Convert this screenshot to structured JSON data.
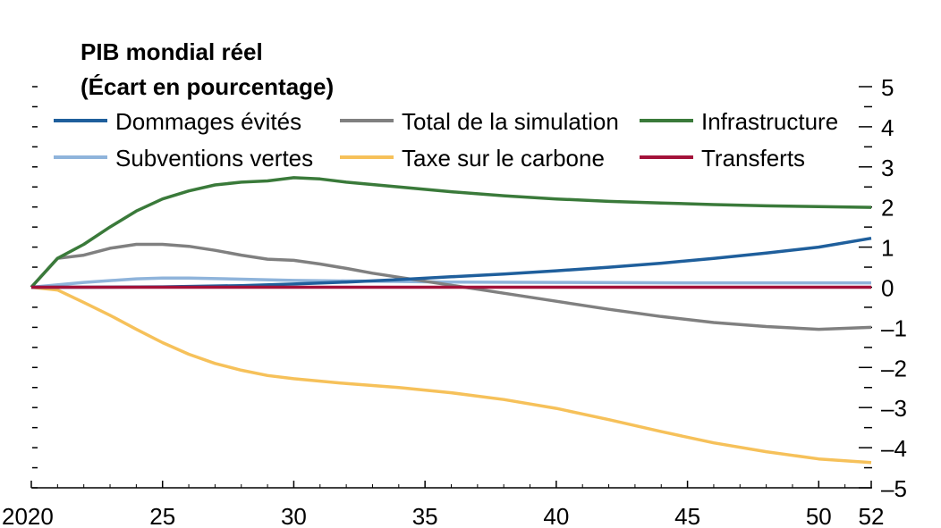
{
  "chart_data": {
    "type": "line",
    "title": "PIB mondial réel",
    "subtitle": "(Écart en pourcentage)",
    "xlabel": "",
    "ylabel": "",
    "xlim": [
      2020,
      2052
    ],
    "ylim": [
      -5,
      5
    ],
    "x_tick_labels": [
      {
        "x": 2020,
        "label": "2020"
      },
      {
        "x": 2025,
        "label": "25"
      },
      {
        "x": 2030,
        "label": "30"
      },
      {
        "x": 2035,
        "label": "35"
      },
      {
        "x": 2040,
        "label": "40"
      },
      {
        "x": 2045,
        "label": "45"
      },
      {
        "x": 2050,
        "label": "50"
      },
      {
        "x": 2052,
        "label": "52"
      }
    ],
    "y_ticks": [
      5,
      4,
      3,
      2,
      1,
      0,
      -1,
      -2,
      -3,
      -4,
      -5
    ],
    "y_tick_labels": [
      "5",
      "4",
      "3",
      "2",
      "1",
      "0",
      "–1",
      "–2",
      "–3",
      "–4",
      "–5"
    ],
    "zero_line": true,
    "grid": false,
    "legend_position": "top",
    "series": [
      {
        "name": "Dommages évités",
        "color": "#1f5f9c",
        "points": [
          [
            2020,
            0
          ],
          [
            2022,
            0
          ],
          [
            2025,
            0.01
          ],
          [
            2028,
            0.04
          ],
          [
            2030,
            0.08
          ],
          [
            2032,
            0.13
          ],
          [
            2034,
            0.19
          ],
          [
            2036,
            0.26
          ],
          [
            2038,
            0.33
          ],
          [
            2040,
            0.41
          ],
          [
            2042,
            0.5
          ],
          [
            2044,
            0.6
          ],
          [
            2046,
            0.72
          ],
          [
            2048,
            0.85
          ],
          [
            2050,
            1.0
          ],
          [
            2052,
            1.22
          ]
        ]
      },
      {
        "name": "Total de la simulation",
        "color": "#808080",
        "points": [
          [
            2020,
            0
          ],
          [
            2021,
            0.72
          ],
          [
            2022,
            0.8
          ],
          [
            2023,
            0.97
          ],
          [
            2024,
            1.07
          ],
          [
            2025,
            1.07
          ],
          [
            2026,
            1.02
          ],
          [
            2027,
            0.92
          ],
          [
            2028,
            0.8
          ],
          [
            2029,
            0.7
          ],
          [
            2030,
            0.67
          ],
          [
            2031,
            0.58
          ],
          [
            2032,
            0.47
          ],
          [
            2033,
            0.35
          ],
          [
            2034,
            0.25
          ],
          [
            2035,
            0.15
          ],
          [
            2036,
            0.05
          ],
          [
            2037,
            -0.05
          ],
          [
            2038,
            -0.15
          ],
          [
            2040,
            -0.35
          ],
          [
            2042,
            -0.55
          ],
          [
            2044,
            -0.73
          ],
          [
            2046,
            -0.88
          ],
          [
            2048,
            -0.98
          ],
          [
            2050,
            -1.05
          ],
          [
            2052,
            -1.0
          ]
        ]
      },
      {
        "name": "Infrastructure",
        "color": "#3a7a3a",
        "points": [
          [
            2020,
            0
          ],
          [
            2021,
            0.72
          ],
          [
            2022,
            1.07
          ],
          [
            2023,
            1.5
          ],
          [
            2024,
            1.9
          ],
          [
            2025,
            2.2
          ],
          [
            2026,
            2.4
          ],
          [
            2027,
            2.55
          ],
          [
            2028,
            2.62
          ],
          [
            2029,
            2.65
          ],
          [
            2030,
            2.73
          ],
          [
            2031,
            2.7
          ],
          [
            2032,
            2.62
          ],
          [
            2034,
            2.5
          ],
          [
            2036,
            2.38
          ],
          [
            2038,
            2.28
          ],
          [
            2040,
            2.2
          ],
          [
            2042,
            2.14
          ],
          [
            2044,
            2.1
          ],
          [
            2046,
            2.06
          ],
          [
            2048,
            2.03
          ],
          [
            2050,
            2.01
          ],
          [
            2052,
            1.99
          ]
        ]
      },
      {
        "name": "Subventions vertes",
        "color": "#8fb4db",
        "points": [
          [
            2020,
            0
          ],
          [
            2022,
            0.12
          ],
          [
            2024,
            0.21
          ],
          [
            2025,
            0.23
          ],
          [
            2026,
            0.23
          ],
          [
            2028,
            0.2
          ],
          [
            2030,
            0.17
          ],
          [
            2033,
            0.15
          ],
          [
            2036,
            0.13
          ],
          [
            2040,
            0.12
          ],
          [
            2045,
            0.11
          ],
          [
            2050,
            0.11
          ],
          [
            2052,
            0.11
          ]
        ]
      },
      {
        "name": "Taxe sur le carbone",
        "color": "#f6c15a",
        "points": [
          [
            2020,
            0
          ],
          [
            2021,
            -0.07
          ],
          [
            2022,
            -0.38
          ],
          [
            2023,
            -0.7
          ],
          [
            2024,
            -1.05
          ],
          [
            2025,
            -1.38
          ],
          [
            2026,
            -1.67
          ],
          [
            2027,
            -1.9
          ],
          [
            2028,
            -2.07
          ],
          [
            2029,
            -2.2
          ],
          [
            2030,
            -2.28
          ],
          [
            2032,
            -2.4
          ],
          [
            2034,
            -2.5
          ],
          [
            2036,
            -2.63
          ],
          [
            2038,
            -2.8
          ],
          [
            2040,
            -3.02
          ],
          [
            2042,
            -3.3
          ],
          [
            2044,
            -3.6
          ],
          [
            2046,
            -3.88
          ],
          [
            2048,
            -4.1
          ],
          [
            2050,
            -4.28
          ],
          [
            2052,
            -4.37
          ]
        ]
      },
      {
        "name": "Transferts",
        "color": "#a3123a",
        "points": [
          [
            2020,
            0
          ],
          [
            2052,
            0
          ]
        ]
      }
    ]
  }
}
